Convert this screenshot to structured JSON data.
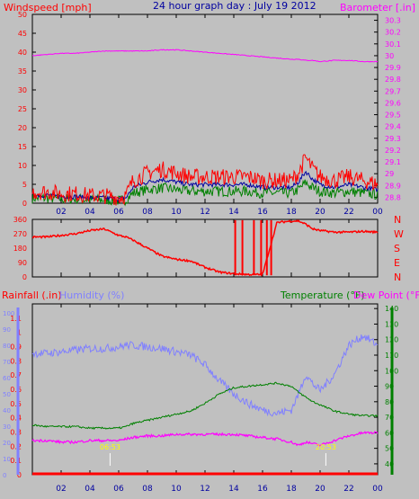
{
  "title": "24 hour graph day : July 19 2012",
  "colors": {
    "bg": "#c0c0c0",
    "frame": "#000000",
    "wind": "#ff0000",
    "wind_avg": "#0000a0",
    "wind_gust": "#008000",
    "baro": "#ff00ff",
    "dir": "#ff0000",
    "rain": "#ff0000",
    "humidity": "#8080ff",
    "temp": "#008000",
    "dew": "#ff00ff",
    "title": "#0000a0",
    "ticks": "#0000a0",
    "sun": "#ffff00"
  },
  "time_ticks": [
    "02",
    "04",
    "06",
    "08",
    "10",
    "12",
    "14",
    "16",
    "18",
    "20",
    "22",
    "00"
  ],
  "wind_panel": {
    "label": "Windspeed [mph]",
    "right_label": "Barometer [.in]",
    "ticks": [
      "0",
      "5",
      "10",
      "15",
      "20",
      "25",
      "30",
      "35",
      "40",
      "45",
      "50"
    ],
    "baro_ticks": [
      "28.8",
      "28.9",
      "29",
      "29.1",
      "29.2",
      "29.3",
      "29.4",
      "29.5",
      "29.6",
      "29.7",
      "29.8",
      "29.9",
      "30",
      "30.1",
      "30.2",
      "30.3"
    ]
  },
  "dir_panel": {
    "ticks": [
      "0",
      "90",
      "180",
      "270",
      "360"
    ],
    "compass": [
      "N",
      "W",
      "S",
      "E",
      "N"
    ]
  },
  "bottom_panel": {
    "rain_label": "Rainfall (.in)",
    "hum_label": "Humidity (%)",
    "temp_label": "Temperature (°F)",
    "dew_label": "Dew Point (°F)",
    "rain_ticks": [
      "0",
      "0.1",
      "0.2",
      "0.3",
      "0.4",
      "0.5",
      "0.6",
      "0.7",
      "0.8",
      "0.9",
      "1",
      "1.1"
    ],
    "hum_ticks": [
      "0",
      "10",
      "20",
      "30",
      "40",
      "50",
      "60",
      "70",
      "80",
      "90",
      "100"
    ],
    "temp_ticks": [
      "40",
      "50",
      "60",
      "70",
      "80",
      "90",
      "100",
      "110",
      "120",
      "130",
      "140"
    ],
    "sun_labels": [
      "06:53",
      "20:53"
    ]
  },
  "chart_data": [
    {
      "type": "line",
      "title": "24 hour graph day : July 19 2012",
      "ylabel": "Windspeed [mph]",
      "ylim": [
        0,
        50
      ],
      "y2label": "Barometer [.in]",
      "y2lim": [
        28.75,
        30.35
      ],
      "x_hours": [
        0,
        1,
        2,
        3,
        4,
        5,
        6,
        6.5,
        7,
        8,
        9,
        10,
        11,
        12,
        13,
        14,
        15,
        16,
        17,
        18,
        18.5,
        19,
        19.5,
        20,
        21,
        22,
        23,
        24
      ],
      "series": [
        {
          "name": "Windspeed [mph]",
          "values": [
            3,
            3,
            2.5,
            2.5,
            2,
            2,
            1.5,
            2,
            6,
            8,
            9,
            8,
            7,
            7,
            7,
            7,
            7,
            6,
            6,
            6,
            8,
            12,
            9,
            7,
            6,
            7,
            6,
            5
          ]
        },
        {
          "name": "Barometer [.in]",
          "values": [
            30.0,
            30.01,
            30.02,
            30.02,
            30.03,
            30.04,
            30.04,
            30.04,
            30.04,
            30.04,
            30.05,
            30.05,
            30.04,
            30.03,
            30.02,
            30.01,
            30.0,
            29.99,
            29.98,
            29.97,
            29.97,
            29.96,
            29.96,
            29.95,
            29.96,
            29.96,
            29.95,
            29.95
          ]
        }
      ]
    },
    {
      "type": "line",
      "ylabel": "Wind direction",
      "ylim": [
        0,
        360
      ],
      "x_hours": [
        0,
        1,
        2,
        3,
        4,
        5,
        6,
        6.5,
        7,
        8,
        9,
        10,
        11,
        12,
        13,
        14,
        15,
        16,
        17,
        18,
        18.5,
        19,
        19.5,
        20,
        21,
        22,
        23,
        24
      ],
      "series": [
        {
          "name": "Direction",
          "values": [
            250,
            250,
            260,
            270,
            290,
            300,
            260,
            250,
            230,
            180,
            130,
            110,
            100,
            60,
            30,
            20,
            15,
            15,
            340,
            350,
            350,
            330,
            300,
            290,
            280,
            280,
            285,
            280
          ]
        }
      ]
    },
    {
      "type": "line",
      "ylabel": "Humidity (%)",
      "ylim": [
        0,
        100
      ],
      "y2label": "Temperature (°F)",
      "y2lim": [
        33,
        143
      ],
      "x_hours": [
        0,
        1,
        2,
        3,
        4,
        5,
        6,
        6.5,
        7,
        8,
        9,
        10,
        11,
        12,
        13,
        14,
        15,
        16,
        17,
        18,
        18.5,
        19,
        19.5,
        20,
        21,
        22,
        23,
        24
      ],
      "series": [
        {
          "name": "Humidity (%)",
          "values": [
            75,
            75,
            76,
            77,
            78,
            78,
            79,
            80,
            80,
            79,
            78,
            76,
            74,
            68,
            58,
            50,
            44,
            40,
            38,
            40,
            50,
            62,
            56,
            52,
            62,
            80,
            86,
            80
          ]
        },
        {
          "name": "Temperature (°F)",
          "values": [
            65,
            64,
            64,
            64,
            63,
            63,
            63,
            64,
            66,
            68,
            70,
            72,
            74,
            79,
            85,
            89,
            90,
            91,
            92,
            90,
            86,
            83,
            80,
            78,
            74,
            72,
            71,
            71
          ]
        },
        {
          "name": "Dew Point (°F)",
          "values": [
            55,
            55,
            54,
            54,
            55,
            55,
            55,
            56,
            57,
            58,
            58,
            59,
            59,
            59,
            59,
            59,
            58,
            57,
            56,
            54,
            52,
            54,
            53,
            52,
            55,
            58,
            60,
            60
          ]
        },
        {
          "name": "Rainfall (.in)",
          "values": [
            0,
            0,
            0,
            0,
            0,
            0,
            0,
            0,
            0,
            0,
            0,
            0,
            0,
            0,
            0,
            0,
            0,
            0,
            0,
            0,
            0,
            0,
            0,
            0,
            0,
            0,
            0,
            0
          ]
        }
      ]
    }
  ]
}
